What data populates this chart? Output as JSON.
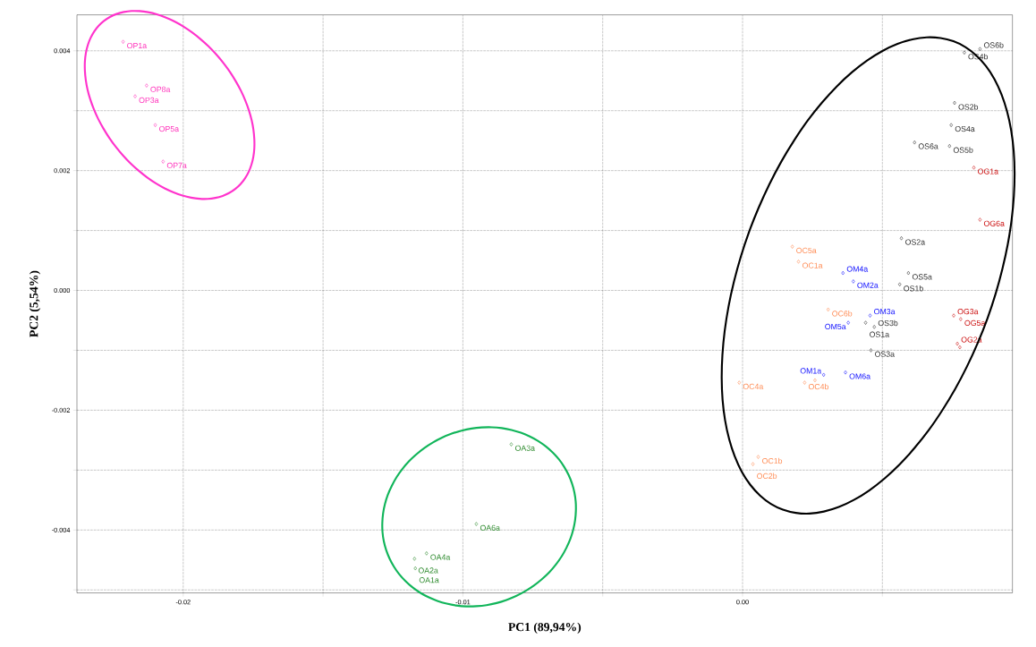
{
  "chart_data": {
    "type": "scatter",
    "xlabel": "PC1 (89,94%)",
    "ylabel": "PC2 (5,54%)",
    "marker": "diamond",
    "grid": true,
    "xlim": [
      -0.0238,
      0.00965
    ],
    "ylim": [
      -0.00505,
      0.0046
    ],
    "xticks": [
      {
        "value": -0.02,
        "label": "-0.02"
      },
      {
        "value": -0.015,
        "label": null
      },
      {
        "value": -0.01,
        "label": "-0.01"
      },
      {
        "value": -0.005,
        "label": null
      },
      {
        "value": 0,
        "label": "0.00"
      },
      {
        "value": 0.005,
        "label": null
      }
    ],
    "yticks": [
      {
        "value": -0.005,
        "label": null
      },
      {
        "value": -0.004,
        "label": "-0.004"
      },
      {
        "value": -0.003,
        "label": null
      },
      {
        "value": -0.002,
        "label": "-0.002"
      },
      {
        "value": -0.001,
        "label": null
      },
      {
        "value": 0,
        "label": "0.000"
      },
      {
        "value": 0.001,
        "label": null
      },
      {
        "value": 0.002,
        "label": "0.002"
      },
      {
        "value": 0.003,
        "label": null
      },
      {
        "value": 0.004,
        "label": "0.004"
      }
    ],
    "series": [
      {
        "color": "#ff33bb",
        "x": [
          -0.02215,
          -0.02131,
          -0.02172,
          -0.021,
          -0.02072
        ],
        "values": [
          0.00415,
          0.00342,
          0.00324,
          0.00276,
          0.00215
        ],
        "value_labels": [
          "OP1a",
          "OP8a",
          "OP3a",
          "OP5a",
          "OP7a"
        ]
      },
      {
        "color": "#2e8b2e",
        "x": [
          -0.00827,
          -0.00952,
          -0.0113,
          -0.01173,
          -0.0117
        ],
        "values": [
          -0.00257,
          -0.0039,
          -0.00439,
          -0.00448,
          -0.00464
        ],
        "value_labels": [
          "OA3a",
          "OA6a",
          "OA4a",
          "OA2a",
          "OA1a"
        ]
      },
      {
        "color": "#333333",
        "x": [
          0.00793,
          0.00849,
          0.00758,
          0.00746,
          0.00615,
          0.0074,
          0.00568,
          0.00593,
          0.00562,
          0.0044,
          0.00471,
          0.00459
        ],
        "values": [
          0.00397,
          0.00403,
          0.00313,
          0.00276,
          0.00247,
          0.00241,
          0.00087,
          0.00029,
          0.0001,
          -0.00054,
          -0.00061,
          -0.001
        ],
        "value_labels": [
          "OS4b",
          "OS6b",
          "OS2b",
          "OS4a",
          "OS6a",
          "OS5b",
          "OS2a",
          "OS5a",
          "OS1b",
          "OS1a",
          "OS3b",
          "OS3a"
        ]
      },
      {
        "color": "#cc1111",
        "x": [
          0.00827,
          0.00849,
          0.00755,
          0.0078,
          0.00768,
          0.00777
        ],
        "values": [
          0.00205,
          0.00118,
          -0.00042,
          -0.00048,
          -0.00089,
          -0.00095
        ],
        "value_labels": [
          "OG1a",
          "OG6a",
          "OG3a",
          "OG5a",
          "OG2a",
          null
        ]
      },
      {
        "color": "#ff8c55",
        "x": [
          0.00178,
          0.002,
          0.00306,
          -0.00012,
          0.00222,
          0.00259,
          0.00056,
          0.00037
        ],
        "values": [
          0.00073,
          0.00048,
          -0.00032,
          -0.00154,
          -0.00154,
          -0.0015,
          -0.00278,
          -0.0029
        ],
        "value_labels": [
          "OC5a",
          "OC1a",
          "OC6b",
          "OC4a",
          "OC4b",
          null,
          "OC1b",
          "OC2b"
        ]
      },
      {
        "color": "#1a1aff",
        "x": [
          0.00359,
          0.00396,
          0.00456,
          0.00378,
          0.0029,
          0.00368
        ],
        "values": [
          0.00029,
          0.00015,
          -0.00042,
          -0.00054,
          -0.00141,
          -0.00137
        ],
        "value_labels": [
          "OM4a",
          "OM2a",
          "OM3a",
          "OM5a",
          "OM1a",
          "OM6a"
        ]
      }
    ]
  }
}
